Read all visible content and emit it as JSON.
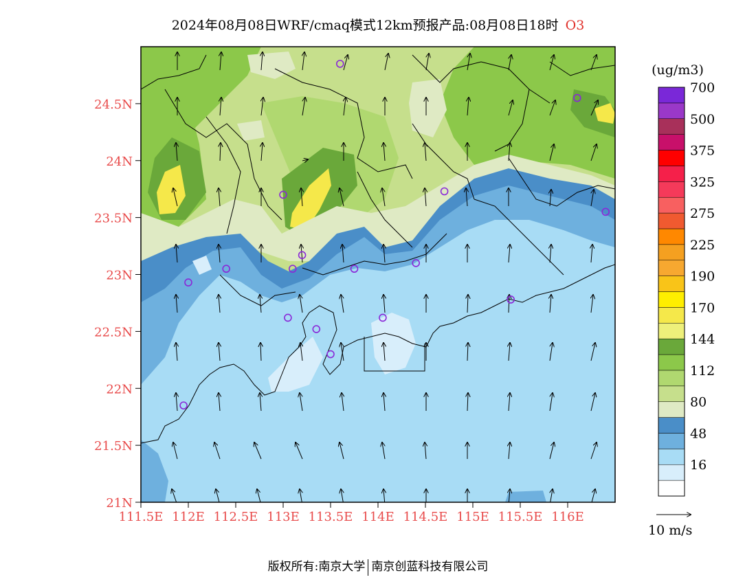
{
  "title": {
    "main": "2024年08月08日WRF/cmaq模式12km预报产品:08月08日18时",
    "species": "O3"
  },
  "units": "(ug/m3)",
  "wind_ref_label": "10 m/s",
  "footer": {
    "left": "版权所有:南京大学",
    "right": "南京创蓝科技有限公司"
  },
  "colors": {
    "label_red": "#e84a4a",
    "water_light": "#a8dcf5"
  },
  "axes": {
    "lon_range": [
      111.5,
      116.5
    ],
    "lat_range": [
      21.0,
      25.0
    ],
    "lon_ticks": [
      {
        "value": 111.5,
        "label": "111.5E"
      },
      {
        "value": 112.0,
        "label": "112E"
      },
      {
        "value": 112.5,
        "label": "112.5E"
      },
      {
        "value": 113.0,
        "label": "113E"
      },
      {
        "value": 113.5,
        "label": "113.5E"
      },
      {
        "value": 114.0,
        "label": "114E"
      },
      {
        "value": 114.5,
        "label": "114.5E"
      },
      {
        "value": 115.0,
        "label": "115E"
      },
      {
        "value": 115.5,
        "label": "115.5E"
      },
      {
        "value": 116.0,
        "label": "116E"
      }
    ],
    "lat_ticks": [
      {
        "value": 21.0,
        "label": "21N"
      },
      {
        "value": 21.5,
        "label": "21.5N"
      },
      {
        "value": 22.0,
        "label": "22N"
      },
      {
        "value": 22.5,
        "label": "22.5N"
      },
      {
        "value": 23.0,
        "label": "23N"
      },
      {
        "value": 23.5,
        "label": "23.5N"
      },
      {
        "value": 24.0,
        "label": "24N"
      },
      {
        "value": 24.5,
        "label": "24.5N"
      }
    ]
  },
  "colorbar": [
    {
      "label": "",
      "color": "#ffffff"
    },
    {
      "label": "16",
      "color": "#d8eefb"
    },
    {
      "label": "",
      "color": "#a8dcf5"
    },
    {
      "label": "48",
      "color": "#6eb0de"
    },
    {
      "label": "",
      "color": "#4a8ec8"
    },
    {
      "label": "80",
      "color": "#dfeac4"
    },
    {
      "label": "",
      "color": "#c6df8c"
    },
    {
      "label": "112",
      "color": "#b0d870"
    },
    {
      "label": "",
      "color": "#8cc84a"
    },
    {
      "label": "144",
      "color": "#6aa83a"
    },
    {
      "label": "",
      "color": "#eef07a"
    },
    {
      "label": "170",
      "color": "#f5e84a"
    },
    {
      "label": "",
      "color": "#ffee00"
    },
    {
      "label": "190",
      "color": "#f9c418"
    },
    {
      "label": "",
      "color": "#f7a830"
    },
    {
      "label": "225",
      "color": "#f5a020"
    },
    {
      "label": "",
      "color": "#ff8800"
    },
    {
      "label": "275",
      "color": "#f05a30"
    },
    {
      "label": "",
      "color": "#f86060"
    },
    {
      "label": "325",
      "color": "#f53a5a"
    },
    {
      "label": "",
      "color": "#f5204a"
    },
    {
      "label": "375",
      "color": "#ff0000"
    },
    {
      "label": "",
      "color": "#c8106a"
    },
    {
      "label": "500",
      "color": "#a8305a"
    },
    {
      "label": "",
      "color": "#9a38c8"
    },
    {
      "label": "700",
      "color": "#7a28d8"
    }
  ],
  "stations": [
    {
      "lon": 113.6,
      "lat": 24.85
    },
    {
      "lon": 116.1,
      "lat": 24.55
    },
    {
      "lon": 113.0,
      "lat": 23.7
    },
    {
      "lon": 114.7,
      "lat": 23.73
    },
    {
      "lon": 116.4,
      "lat": 23.55
    },
    {
      "lon": 113.2,
      "lat": 23.17
    },
    {
      "lon": 113.1,
      "lat": 23.05
    },
    {
      "lon": 112.4,
      "lat": 23.05
    },
    {
      "lon": 113.75,
      "lat": 23.05
    },
    {
      "lon": 114.4,
      "lat": 23.1
    },
    {
      "lon": 112.0,
      "lat": 22.93
    },
    {
      "lon": 115.4,
      "lat": 22.78
    },
    {
      "lon": 113.05,
      "lat": 22.62
    },
    {
      "lon": 114.05,
      "lat": 22.62
    },
    {
      "lon": 113.35,
      "lat": 22.52
    },
    {
      "lon": 113.5,
      "lat": 22.3
    },
    {
      "lon": 111.95,
      "lat": 21.85
    }
  ]
}
